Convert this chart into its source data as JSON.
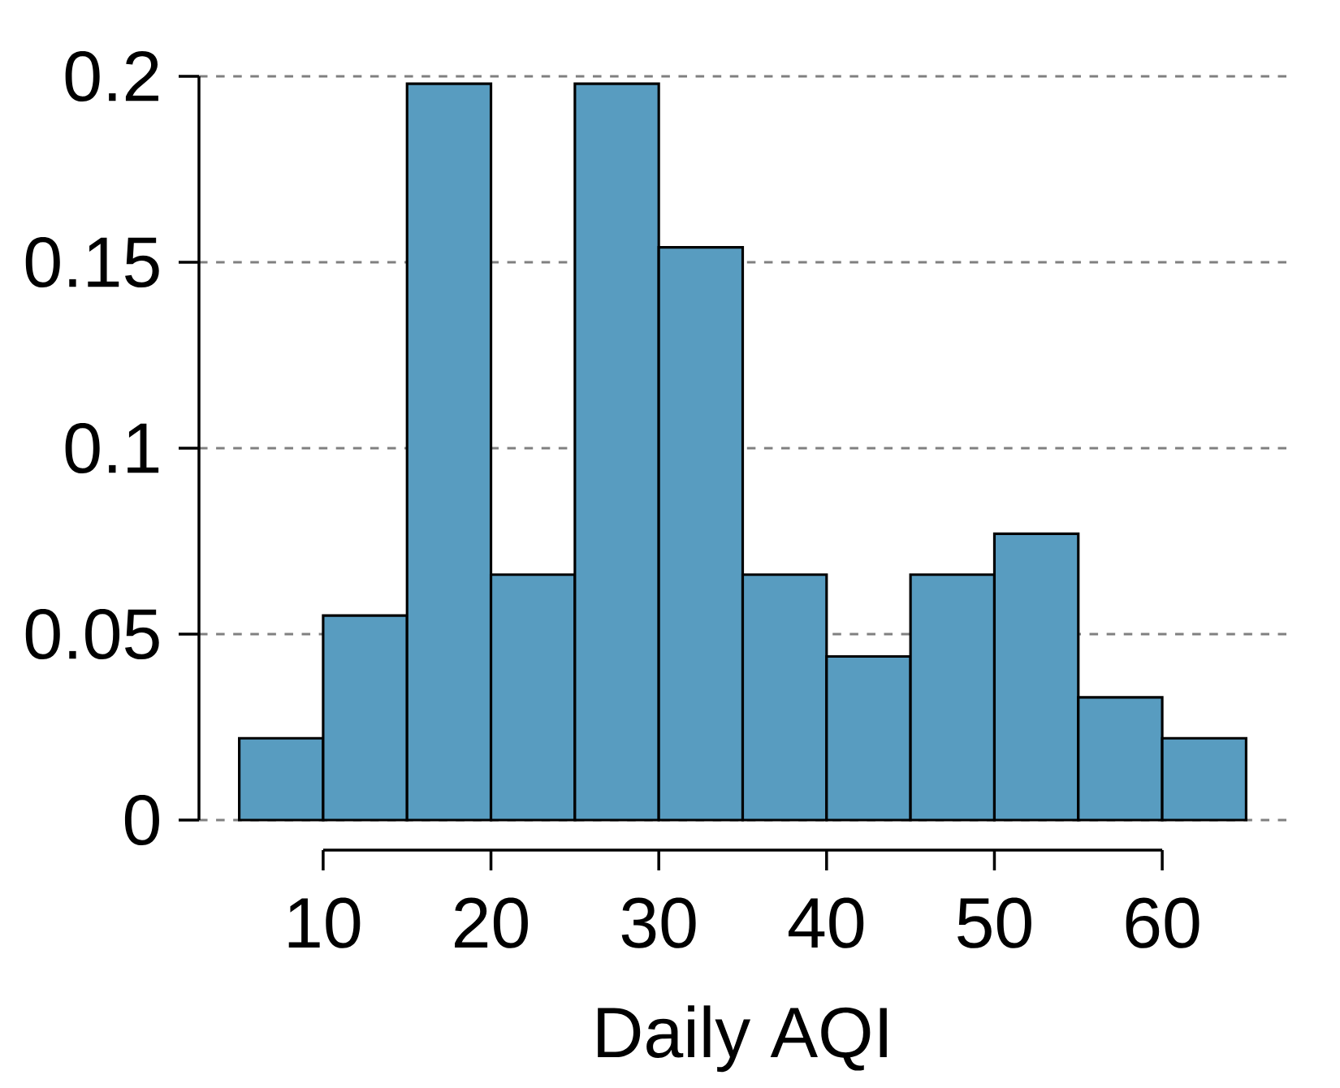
{
  "chart_data": {
    "type": "histogram",
    "xlabel": "Daily AQI",
    "bins": [
      5,
      10,
      15,
      20,
      25,
      30,
      35,
      40,
      45,
      50,
      55,
      60,
      65
    ],
    "values": [
      0.022,
      0.055,
      0.198,
      0.066,
      0.198,
      0.154,
      0.066,
      0.044,
      0.066,
      0.077,
      0.033,
      0.022
    ],
    "color": "#589cc0",
    "xlim": [
      2.6,
      67.4
    ],
    "xticks": [
      10,
      20,
      30,
      40,
      50,
      60
    ],
    "ylim": [
      0,
      0.2
    ],
    "yticks": [
      0,
      0.05,
      0.1,
      0.15,
      0.2
    ],
    "grid": "y"
  }
}
